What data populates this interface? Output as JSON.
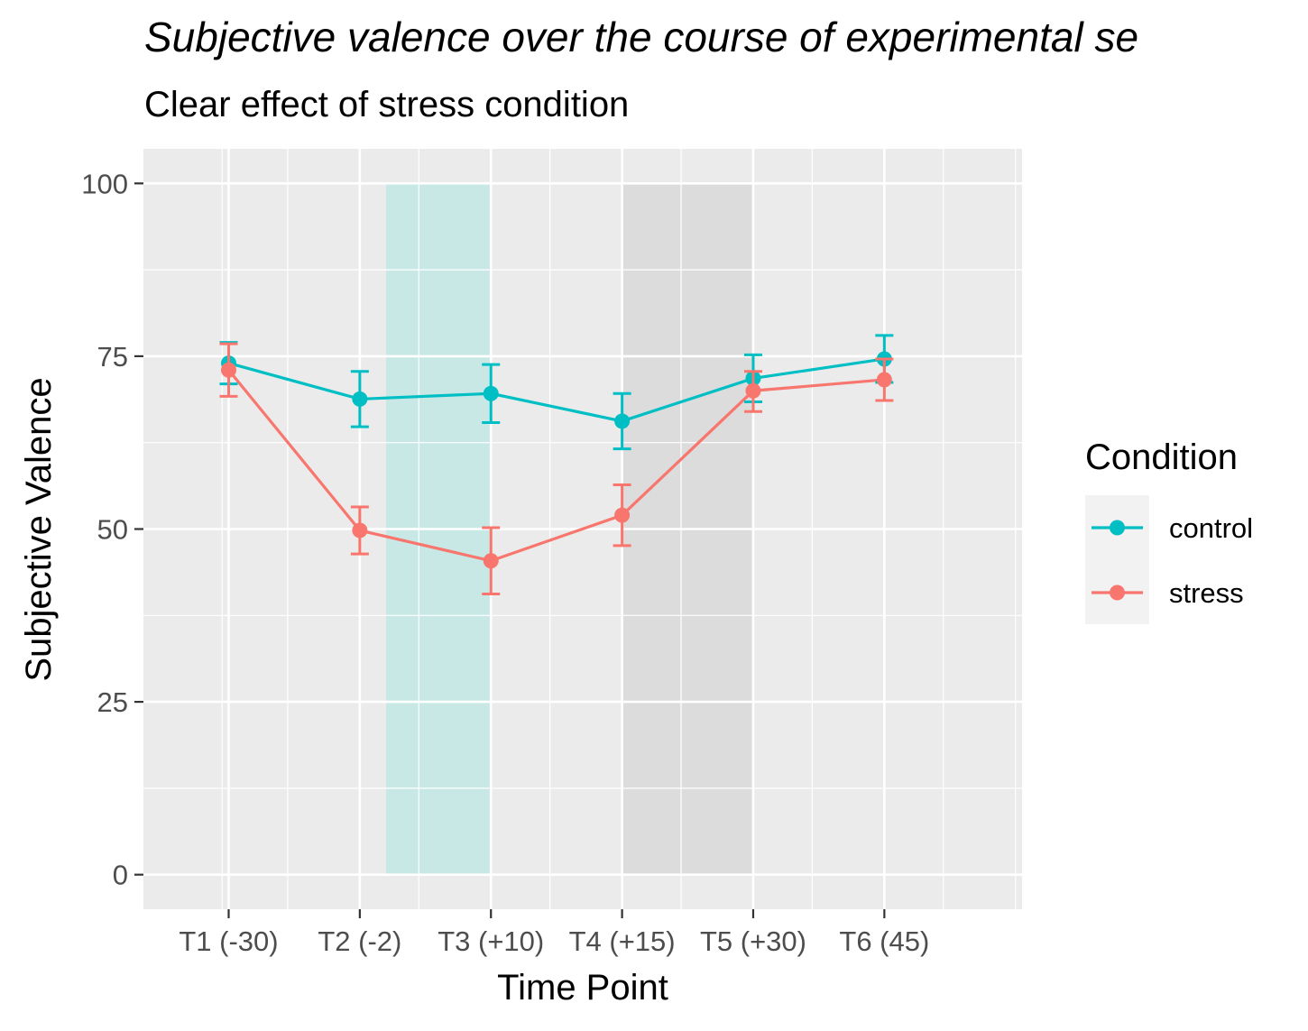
{
  "chart_data": {
    "type": "line",
    "title": "Subjective valence over the course of experimental se",
    "subtitle": "Clear effect of stress condition",
    "xlabel": "Time Point",
    "ylabel": "Subjective Valence",
    "categories": [
      "T1 (-30)",
      "T2 (-2)",
      "T3 (+10)",
      "T4 (+15)",
      "T5 (+30)",
      "T6 (45)"
    ],
    "ylim": [
      -5,
      105
    ],
    "yticks": [
      0,
      25,
      50,
      75,
      100
    ],
    "xticks_minor": [
      0.95,
      1.45,
      2.45,
      3.45,
      4.45,
      5.45,
      6.45,
      7.0
    ],
    "grid": true,
    "shaded_regions": [
      {
        "x_start": 2.2,
        "x_end": 3.0,
        "y_start": 0,
        "y_end": 100,
        "color": "#c8e8e6"
      },
      {
        "x_start": 4.0,
        "x_end": 5.0,
        "y_start": 0,
        "y_end": 100,
        "color": "#dcdcdc"
      }
    ],
    "series": [
      {
        "name": "control",
        "color": "#00BFC4",
        "values": [
          74.0,
          68.8,
          69.6,
          65.6,
          71.8,
          74.6
        ],
        "error_low": [
          71.0,
          64.8,
          65.4,
          61.6,
          68.4,
          71.2
        ],
        "error_high": [
          77.0,
          72.8,
          73.8,
          69.6,
          75.2,
          78.0
        ]
      },
      {
        "name": "stress",
        "color": "#F8766D",
        "values": [
          73.0,
          49.8,
          45.4,
          52.0,
          70.0,
          71.6
        ],
        "error_low": [
          69.2,
          46.4,
          40.6,
          47.6,
          67.0,
          68.6
        ],
        "error_high": [
          76.8,
          53.2,
          50.2,
          56.4,
          72.8,
          74.6
        ]
      }
    ],
    "legend": {
      "title": "Condition",
      "position": "right"
    }
  }
}
